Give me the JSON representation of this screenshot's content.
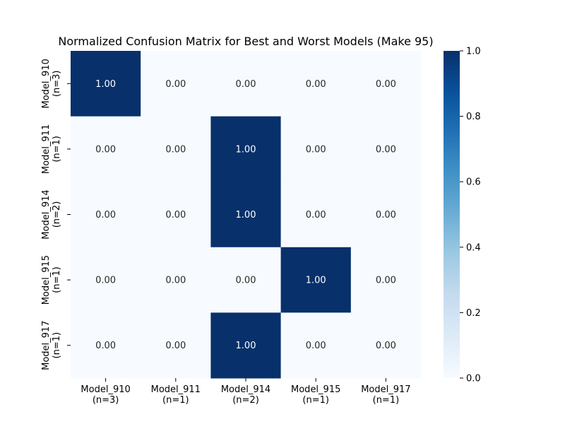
{
  "chart_data": {
    "type": "heatmap",
    "title": "Normalized Confusion Matrix for Best and Worst Models (Make 95)",
    "xlabel": "",
    "ylabel": "",
    "row_labels": [
      [
        "Model_910",
        "(n=3)"
      ],
      [
        "Model_911",
        "(n=1)"
      ],
      [
        "Model_914",
        "(n=2)"
      ],
      [
        "Model_915",
        "(n=1)"
      ],
      [
        "Model_917",
        "(n=1)"
      ]
    ],
    "col_labels": [
      [
        "Model_910",
        "(n=3)"
      ],
      [
        "Model_911",
        "(n=1)"
      ],
      [
        "Model_914",
        "(n=2)"
      ],
      [
        "Model_915",
        "(n=1)"
      ],
      [
        "Model_917",
        "(n=1)"
      ]
    ],
    "values": [
      [
        1.0,
        0.0,
        0.0,
        0.0,
        0.0
      ],
      [
        0.0,
        0.0,
        1.0,
        0.0,
        0.0
      ],
      [
        0.0,
        0.0,
        1.0,
        0.0,
        0.0
      ],
      [
        0.0,
        0.0,
        0.0,
        1.0,
        0.0
      ],
      [
        0.0,
        0.0,
        1.0,
        0.0,
        0.0
      ]
    ],
    "cell_label_format": "0.00",
    "colormap": "Blues",
    "vmin": 0.0,
    "vmax": 1.0,
    "colorbar": {
      "ticks": [
        0.0,
        0.2,
        0.4,
        0.6,
        0.8,
        1.0
      ],
      "tick_labels": [
        "0.0",
        "0.2",
        "0.4",
        "0.6",
        "0.8",
        "1.0"
      ],
      "placement": "right"
    },
    "colors": {
      "min": "#f7fbff",
      "max": "#08306b",
      "text_on_dark": "#ffffff",
      "text_on_light": "#262626"
    }
  }
}
